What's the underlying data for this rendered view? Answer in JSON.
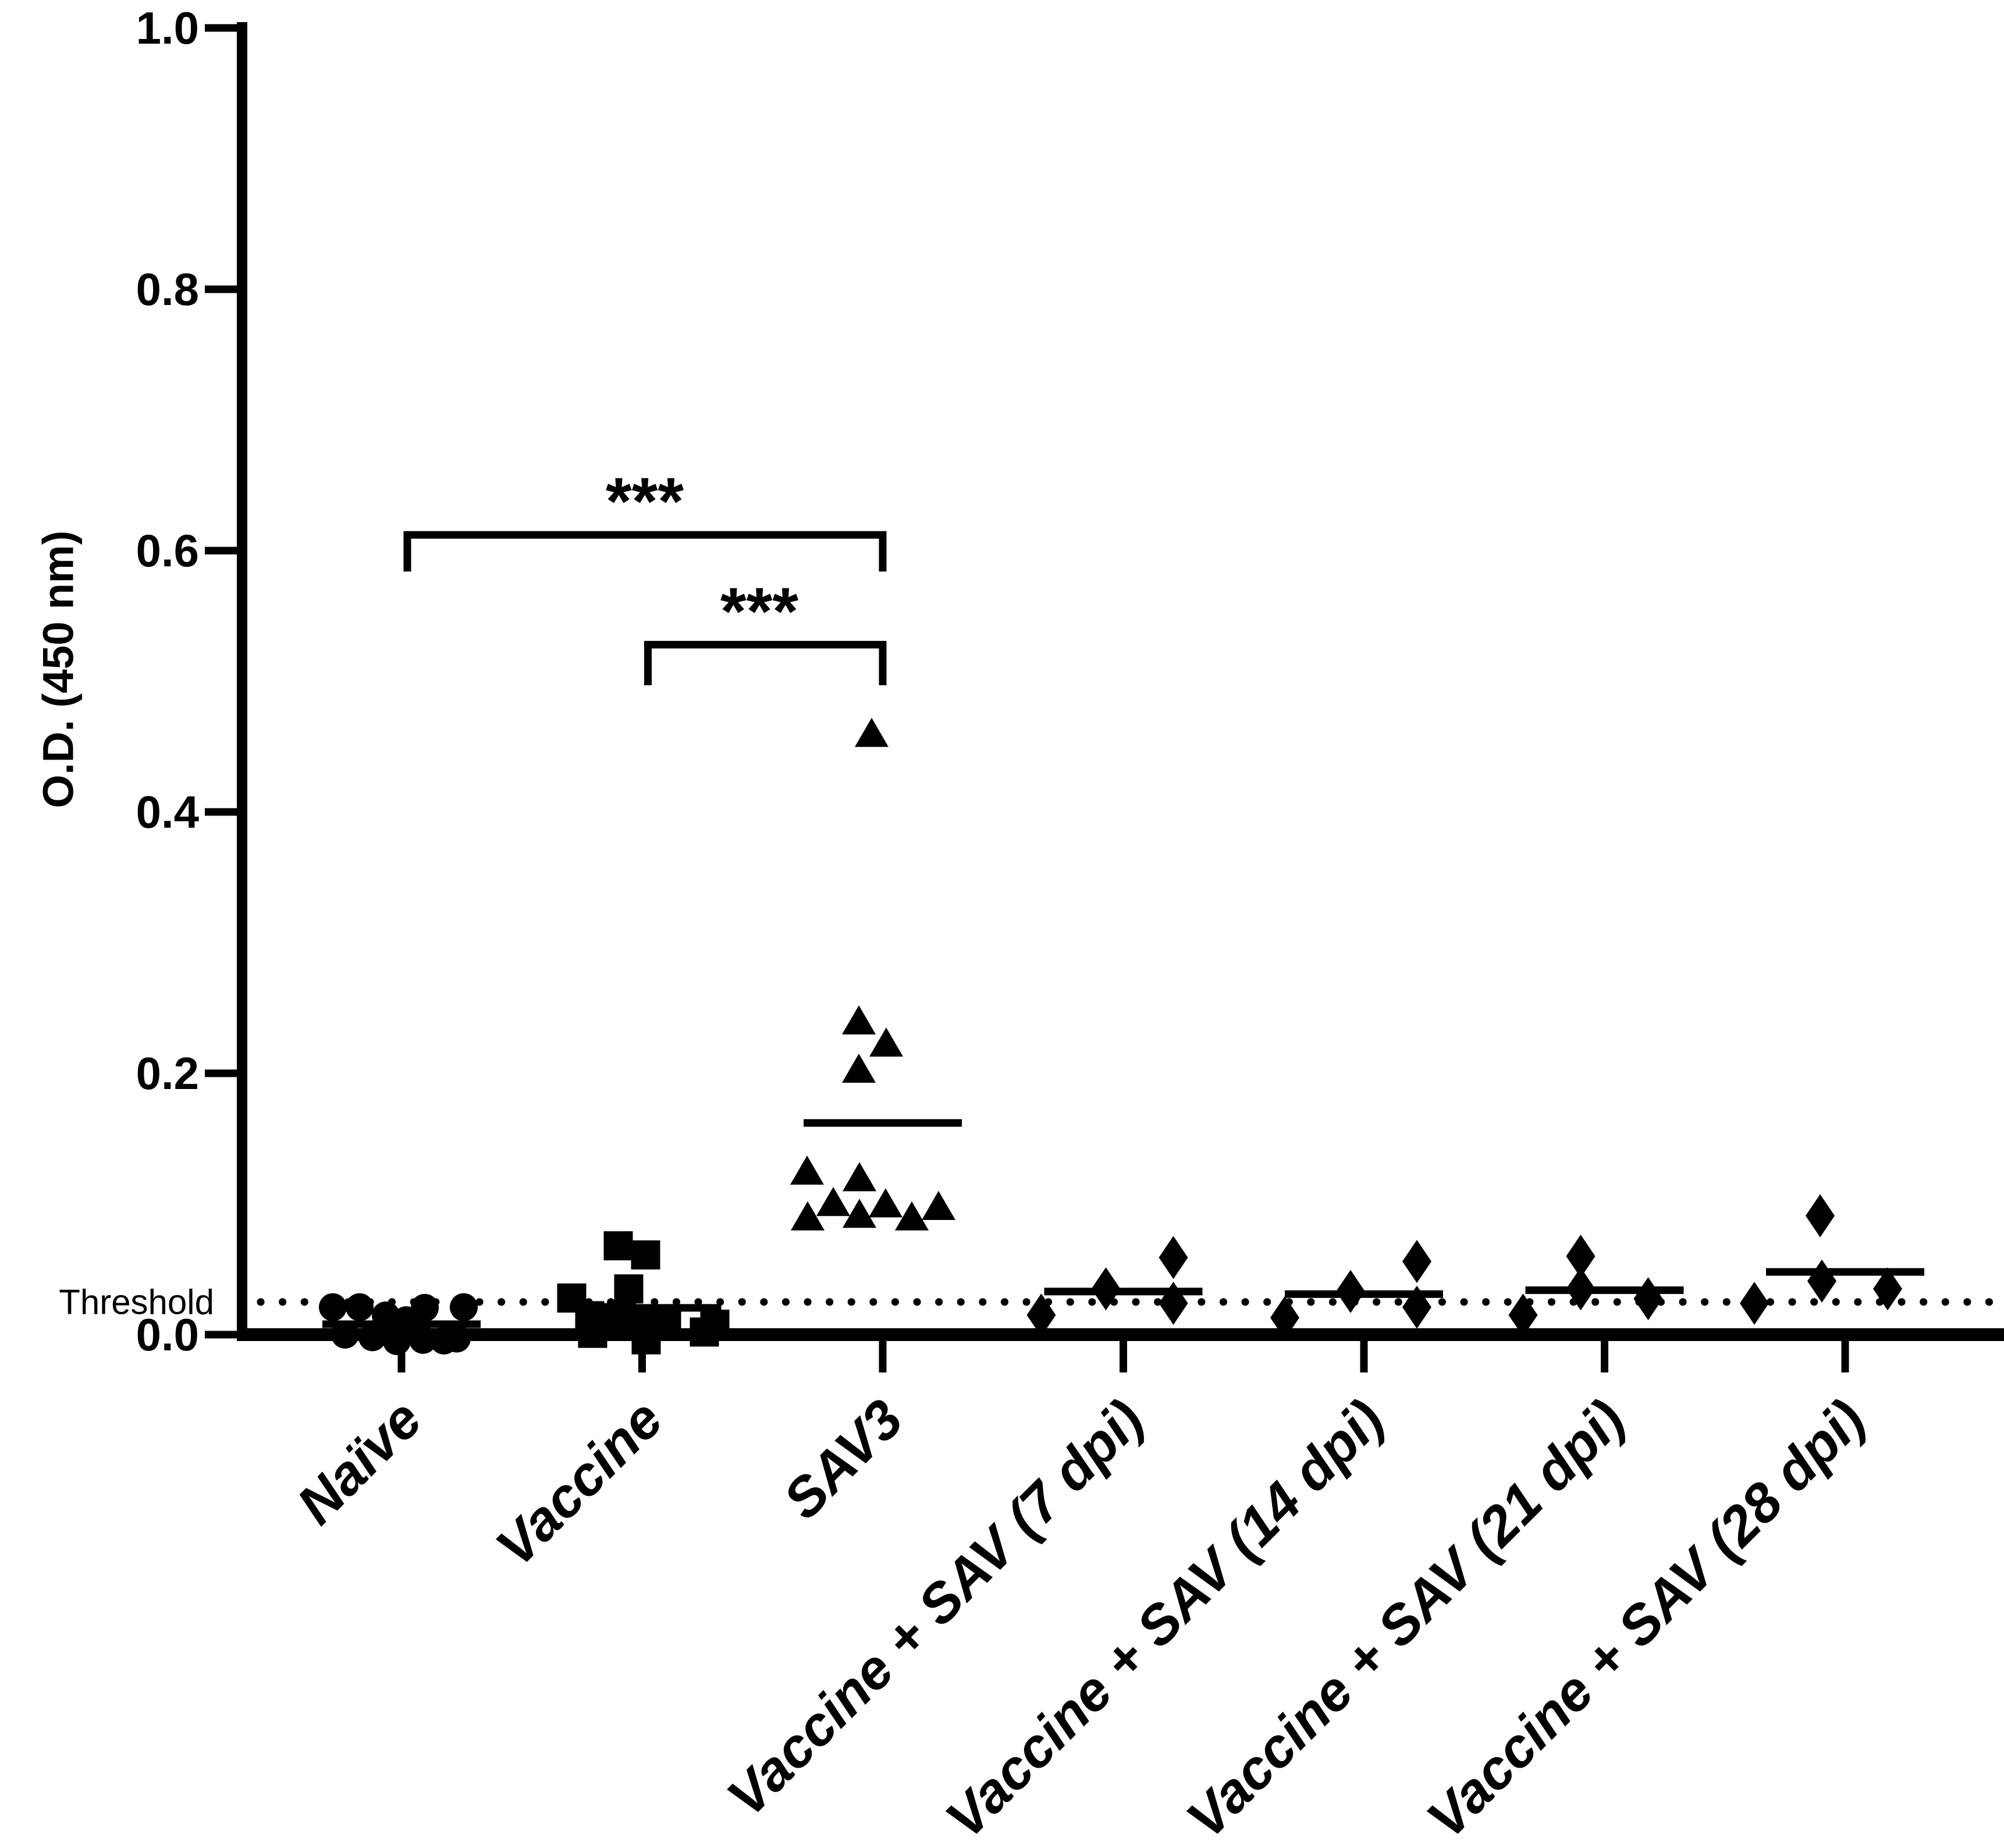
{
  "chart_data": {
    "type": "scatter",
    "title": "",
    "ylabel": "O.D. (450 nm)",
    "xlabel": "",
    "ylim": [
      0.0,
      1.0
    ],
    "grid": false,
    "legend": "none",
    "ytick_labels": [
      "1.0",
      "0.8",
      "0.6",
      "0.4",
      "0.2",
      "0.0"
    ],
    "ytick_values": [
      1.0,
      0.8,
      0.6,
      0.4,
      0.2,
      0.0
    ],
    "threshold": {
      "label": "Threshold",
      "value": 0.025
    },
    "marker_color": "#000000",
    "groups": [
      {
        "label": "Naïve",
        "marker": "circle",
        "mean": 0.008,
        "points": [
          [
            -118,
            0.021
          ],
          [
            -72,
            0.021
          ],
          [
            40,
            0.0205
          ],
          [
            107,
            0.021
          ],
          [
            -27,
            0.0147
          ],
          [
            8,
            0.011
          ],
          [
            -97,
            0.0
          ],
          [
            -50,
            -0.002
          ],
          [
            -8,
            -0.005
          ],
          [
            37,
            -0.004
          ],
          [
            73,
            -0.0045
          ],
          [
            95,
            -0.003
          ]
        ]
      },
      {
        "label": "Vaccine",
        "marker": "square",
        "mean": 0.0205,
        "points": [
          [
            -41,
            0.068
          ],
          [
            6,
            0.061
          ],
          [
            -23,
            0.035
          ],
          [
            -121,
            0.028
          ],
          [
            -90,
            0.0145
          ],
          [
            -46,
            0.013
          ],
          [
            -2,
            0.012
          ],
          [
            42,
            0.008
          ],
          [
            125,
            0.008
          ],
          [
            -85,
            0.001
          ],
          [
            7,
            -0.004
          ],
          [
            107,
            0.002
          ]
        ]
      },
      {
        "label": "SAV3",
        "marker": "triangle",
        "mean": 0.162,
        "points": [
          [
            -19,
            0.46
          ],
          [
            -41,
            0.24
          ],
          [
            6,
            0.223
          ],
          [
            -41,
            0.203
          ],
          [
            -130,
            0.125
          ],
          [
            -40,
            0.12
          ],
          [
            -85,
            0.101
          ],
          [
            5,
            0.1
          ],
          [
            96,
            0.098
          ],
          [
            -129,
            0.09
          ],
          [
            -40,
            0.092
          ],
          [
            50,
            0.09
          ]
        ]
      },
      {
        "label": "Vaccine + SAV (7 dpi)",
        "marker": "diamond",
        "mean": 0.033,
        "points": [
          [
            -141,
            0.015
          ],
          [
            -30,
            0.035
          ],
          [
            86,
            0.059
          ],
          [
            86,
            0.024
          ]
        ]
      },
      {
        "label": "Vaccine + SAV (14 dpi)",
        "marker": "diamond",
        "mean": 0.031,
        "points": [
          [
            -136,
            0.013
          ],
          [
            -23,
            0.033
          ],
          [
            91,
            0.056
          ],
          [
            91,
            0.021
          ]
        ]
      },
      {
        "label": "Vaccine + SAV (21 dpi)",
        "marker": "diamond",
        "mean": 0.034,
        "points": [
          [
            -140,
            0.015
          ],
          [
            -41,
            0.06
          ],
          [
            -41,
            0.035
          ],
          [
            75,
            0.0275
          ]
        ]
      },
      {
        "label": "Vaccine + SAV (28 dpi)",
        "marker": "diamond",
        "mean": 0.048,
        "points": [
          [
            -156,
            0.024
          ],
          [
            -43,
            0.091
          ],
          [
            -40,
            0.041
          ],
          [
            73,
            0.035
          ]
        ]
      }
    ],
    "significance": [
      {
        "group_from": 0,
        "group_to": 2,
        "label": "***",
        "bar_value": 0.612,
        "drop": 0.028
      },
      {
        "group_from": 1,
        "group_to": 2,
        "label": "***",
        "bar_value": 0.528,
        "drop": 0.031
      }
    ]
  }
}
